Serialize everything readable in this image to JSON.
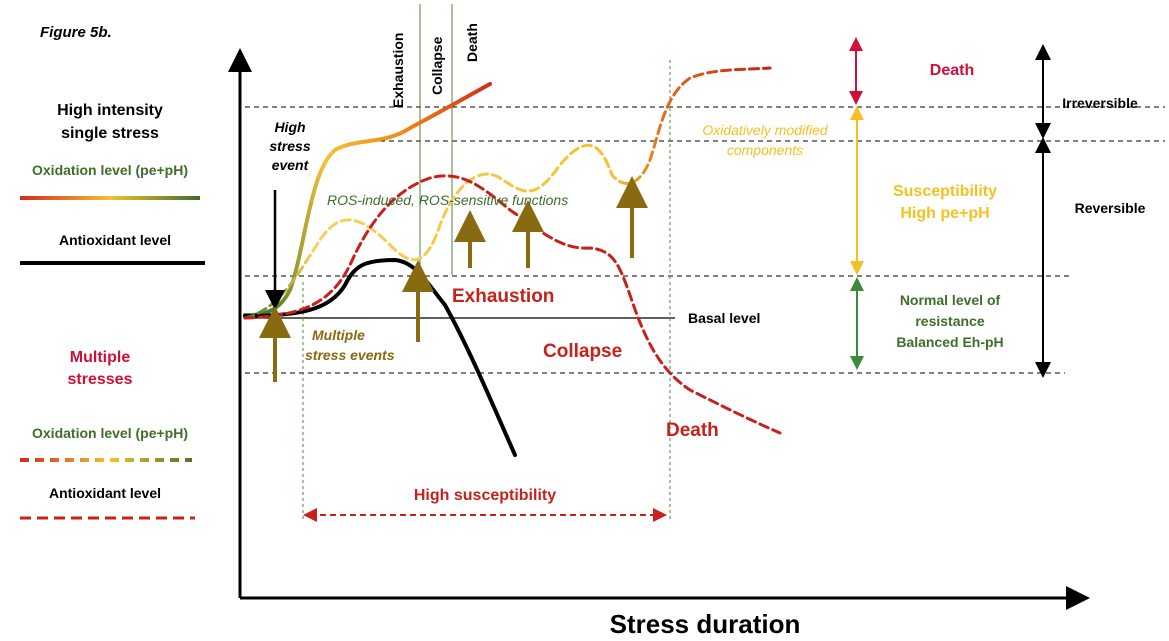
{
  "figure_label": "Figure 5b.",
  "legend": {
    "single": {
      "title": [
        "High intensity",
        "single stress"
      ],
      "oxidation": "Oxidation level (pe+pH)",
      "antioxidant": "Antioxidant level"
    },
    "multiple": {
      "title": [
        "Multiple",
        "stresses"
      ],
      "oxidation": "Oxidation level (pe+pH)",
      "antioxidant": "Antioxidant level"
    }
  },
  "phase_lines": [
    "Exhaustion",
    "Collapse",
    "Death"
  ],
  "annotations": {
    "high_stress_event": [
      "High",
      "stress",
      "event"
    ],
    "ros": "ROS-induced, ROS-sensitive functions",
    "oxidatively": [
      "Oxidatively modified",
      "components"
    ],
    "exhaustion": "Exhaustion",
    "collapse": "Collapse",
    "death": "Death",
    "basal": "Basal level",
    "multiple_events": [
      "Multiple",
      "stress events"
    ],
    "high_susceptibility": "High susceptibility"
  },
  "x_axis_label": "Stress duration",
  "zones": {
    "death": "Death",
    "susceptibility": [
      "Susceptibility",
      "High pe+pH"
    ],
    "normal": [
      "Normal level of",
      "resistance",
      "Balanced Eh-pH"
    ],
    "irreversible": "Irreversible",
    "reversible": "Reversible"
  }
}
